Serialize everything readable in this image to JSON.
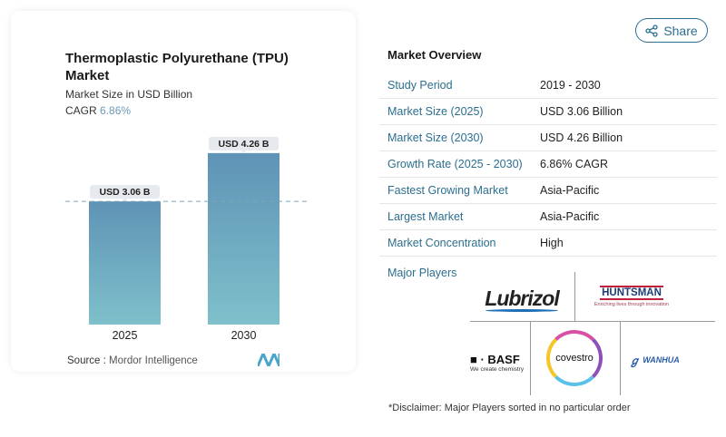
{
  "header": {
    "share_label": "Share",
    "share_icon": "share-icon"
  },
  "chart_data": {
    "type": "bar",
    "title": "Thermoplastic Polyurethane (TPU) Market",
    "subtitle": "Market Size in USD Billion",
    "cagr_label": "CAGR",
    "cagr_value": "6.86%",
    "categories": [
      "2025",
      "2030"
    ],
    "values": [
      3.06,
      4.26
    ],
    "data_labels": [
      "USD 3.06 B",
      "USD 4.26 B"
    ],
    "colors": {
      "bar_top": "#5f93b6",
      "bar_bottom": "#7fc0cb",
      "accent": "#6b9ab8"
    },
    "reference_line": "dashed at 2025 value",
    "source_label": "Source :",
    "source": "Mordor Intelligence"
  },
  "overview": {
    "title": "Market Overview",
    "rows": [
      {
        "label": "Study Period",
        "value": "2019 - 2030"
      },
      {
        "label": "Market Size (2025)",
        "value": "USD 3.06 Billion"
      },
      {
        "label": "Market Size (2030)",
        "value": "USD 4.26 Billion"
      },
      {
        "label": "Growth Rate (2025 - 2030)",
        "value": "6.86% CAGR"
      },
      {
        "label": "Fastest Growing Market",
        "value": "Asia-Pacific"
      },
      {
        "label": "Largest Market",
        "value": "Asia-Pacific"
      },
      {
        "label": "Market Concentration",
        "value": "High"
      }
    ],
    "major_players_label": "Major Players",
    "players": [
      "Lubrizol",
      "HUNTSMAN",
      "BASF",
      "covestro",
      "WANHUA"
    ],
    "huntsman_tagline": "Enriching lives through innovation",
    "basf_tagline": "We create chemistry",
    "disclaimer": "*Disclaimer: Major Players sorted in no particular order"
  }
}
